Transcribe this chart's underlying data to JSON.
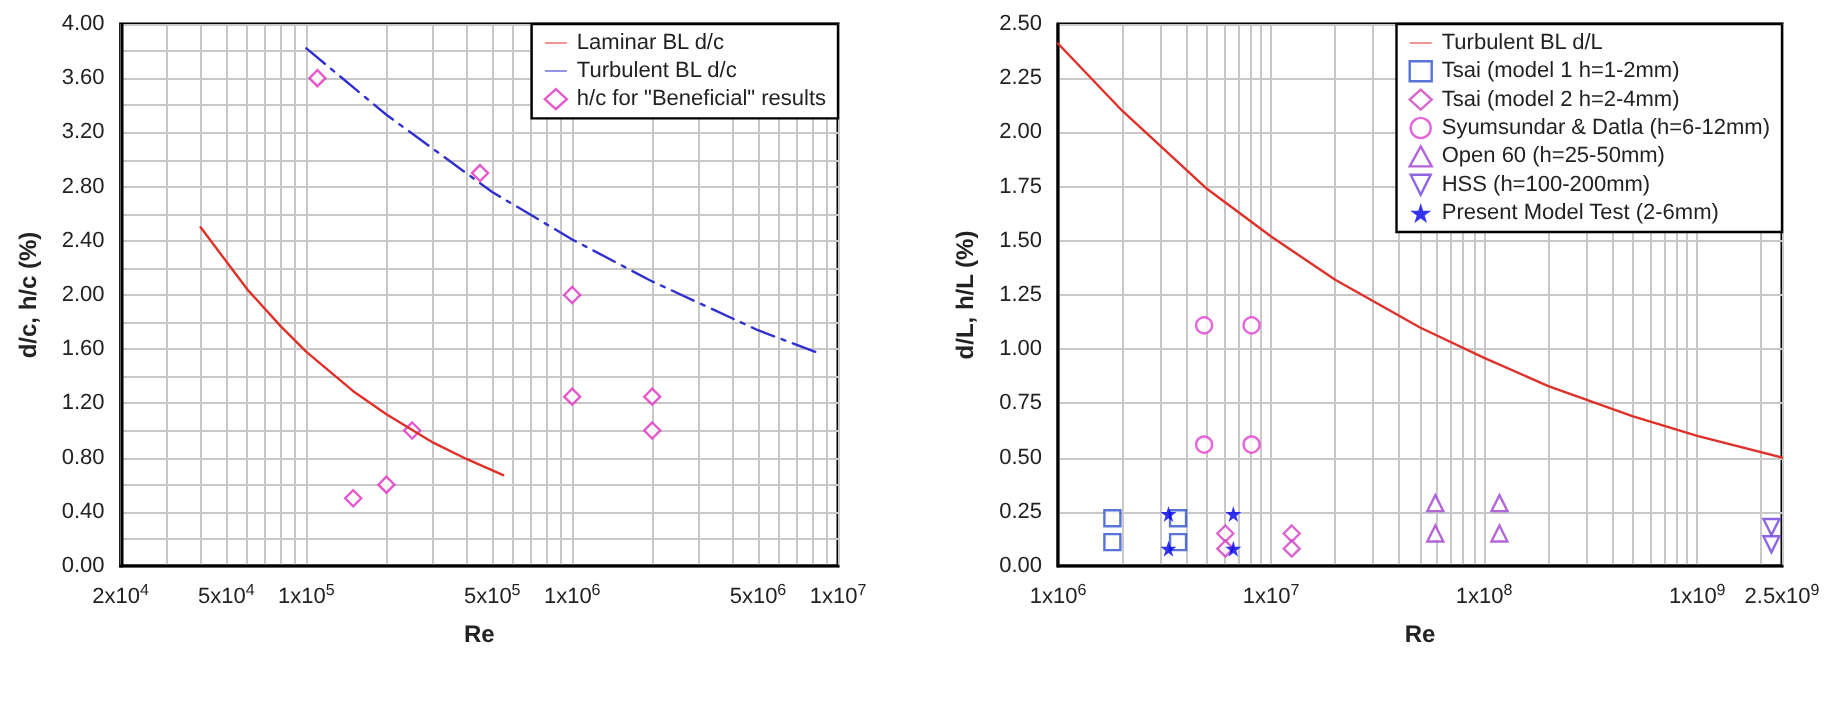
{
  "chart_data": [
    {
      "type": "line",
      "log": "x",
      "xlabel": "Re",
      "ylabel": "d/c, h/c (%)",
      "grid": true,
      "legend": "top right",
      "xlim": [
        20000,
        10000000
      ],
      "ylim": [
        0,
        4
      ],
      "xticks": [
        {
          "value": 20000,
          "label": "2x10$^{4}$"
        },
        {
          "value": 30000,
          "label": null
        },
        {
          "value": 40000,
          "label": null
        },
        {
          "value": 50000,
          "label": "5x10$^{4}$"
        },
        {
          "value": 60000,
          "label": null
        },
        {
          "value": 70000,
          "label": null
        },
        {
          "value": 80000,
          "label": null
        },
        {
          "value": 90000,
          "label": null
        },
        {
          "value": 100000,
          "label": "1x10$^{5}$"
        },
        {
          "value": 200000,
          "label": null
        },
        {
          "value": 300000,
          "label": null
        },
        {
          "value": 400000,
          "label": null
        },
        {
          "value": 500000,
          "label": "5x10$^{5}$"
        },
        {
          "value": 600000,
          "label": null
        },
        {
          "value": 700000,
          "label": null
        },
        {
          "value": 800000,
          "label": null
        },
        {
          "value": 900000,
          "label": null
        },
        {
          "value": 1000000,
          "label": "1x10$^{6}$"
        },
        {
          "value": 2000000,
          "label": null
        },
        {
          "value": 3000000,
          "label": null
        },
        {
          "value": 4000000,
          "label": null
        },
        {
          "value": 5000000,
          "label": "5x10$^{6}$"
        },
        {
          "value": 6000000,
          "label": null
        },
        {
          "value": 7000000,
          "label": null
        },
        {
          "value": 8000000,
          "label": null
        },
        {
          "value": 9000000,
          "label": null
        },
        {
          "value": 10000000,
          "label": "1x10$^{7}$"
        }
      ],
      "yticks": [
        {
          "value": 0,
          "label": "0.00"
        },
        {
          "value": 0.2,
          "label": null
        },
        {
          "value": 0.4,
          "label": "0.40"
        },
        {
          "value": 0.6,
          "label": null
        },
        {
          "value": 0.8,
          "label": "0.80"
        },
        {
          "value": 1.0,
          "label": null
        },
        {
          "value": 1.2,
          "label": "1.20"
        },
        {
          "value": 1.4,
          "label": null
        },
        {
          "value": 1.6,
          "label": "1.60"
        },
        {
          "value": 1.8,
          "label": null
        },
        {
          "value": 2.0,
          "label": "2.00"
        },
        {
          "value": 2.2,
          "label": null
        },
        {
          "value": 2.4,
          "label": "2.40"
        },
        {
          "value": 2.6,
          "label": null
        },
        {
          "value": 2.8,
          "label": "2.80"
        },
        {
          "value": 3.0,
          "label": null
        },
        {
          "value": 3.2,
          "label": "3.20"
        },
        {
          "value": 3.4,
          "label": null
        },
        {
          "value": 3.6,
          "label": "3.60"
        },
        {
          "value": 3.8,
          "label": null
        },
        {
          "value": 4.0,
          "label": "4.00"
        }
      ],
      "series": [
        {
          "name": "Laminar BL d/c",
          "type": "line",
          "color": "#e0302a",
          "line_style": "solid",
          "marker": "none",
          "x": [
            40000,
            60000,
            80000,
            100000,
            150000,
            200000,
            300000,
            400000,
            550000
          ],
          "values": [
            2.5,
            2.04,
            1.77,
            1.58,
            1.29,
            1.12,
            0.91,
            0.79,
            0.67
          ]
        },
        {
          "name": "Turbulent BL d/c",
          "type": "line",
          "color": "#3030d0",
          "line_style": "dashed",
          "marker": "none",
          "x": [
            100000,
            200000,
            500000,
            1000000,
            2000000,
            5000000,
            8500000
          ],
          "values": [
            3.82,
            3.33,
            2.76,
            2.41,
            2.1,
            1.74,
            1.57
          ]
        },
        {
          "name": "h/c for \"Beneficial\" results",
          "type": "scatter",
          "color": "#e030c0",
          "marker": "diamond",
          "x": [
            110000,
            150000,
            200000,
            250000,
            450000,
            1000000,
            1000000,
            2000000,
            2000000
          ],
          "values": [
            3.6,
            0.5,
            0.6,
            1.0,
            2.9,
            2.0,
            1.25,
            1.25,
            1.0
          ]
        }
      ]
    },
    {
      "type": "line",
      "log": "x",
      "xlabel": "Re",
      "ylabel": "d/L, h/L (%)",
      "grid": true,
      "legend": "top right",
      "xlim": [
        1000000,
        2500000000
      ],
      "ylim": [
        0,
        2.5
      ],
      "xticks": [
        {
          "value": 1000000,
          "label": "1x10$^{6}$"
        },
        {
          "value": 2000000,
          "label": null
        },
        {
          "value": 3000000,
          "label": null
        },
        {
          "value": 4000000,
          "label": null
        },
        {
          "value": 5000000,
          "label": null
        },
        {
          "value": 6000000,
          "label": null
        },
        {
          "value": 7000000,
          "label": null
        },
        {
          "value": 8000000,
          "label": null
        },
        {
          "value": 9000000,
          "label": null
        },
        {
          "value": 10000000,
          "label": "1x10$^{7}$"
        },
        {
          "value": 20000000,
          "label": null
        },
        {
          "value": 30000000,
          "label": null
        },
        {
          "value": 40000000,
          "label": null
        },
        {
          "value": 50000000,
          "label": null
        },
        {
          "value": 60000000,
          "label": null
        },
        {
          "value": 70000000,
          "label": null
        },
        {
          "value": 80000000,
          "label": null
        },
        {
          "value": 90000000,
          "label": null
        },
        {
          "value": 100000000,
          "label": "1x10$^{8}$"
        },
        {
          "value": 200000000,
          "label": null
        },
        {
          "value": 300000000,
          "label": null
        },
        {
          "value": 400000000,
          "label": null
        },
        {
          "value": 500000000,
          "label": null
        },
        {
          "value": 600000000,
          "label": null
        },
        {
          "value": 700000000,
          "label": null
        },
        {
          "value": 800000000,
          "label": null
        },
        {
          "value": 900000000,
          "label": null
        },
        {
          "value": 1000000000,
          "label": "1x10$^{9}$"
        },
        {
          "value": 2000000000,
          "label": null
        },
        {
          "value": 2500000000,
          "label": "2.5x10$^{9}$"
        }
      ],
      "yticks": [
        {
          "value": 0,
          "label": "0.00"
        },
        {
          "value": 0.25,
          "label": "0.25"
        },
        {
          "value": 0.5,
          "label": "0.50"
        },
        {
          "value": 0.75,
          "label": "0.75"
        },
        {
          "value": 1.0,
          "label": "1.00"
        },
        {
          "value": 1.25,
          "label": "1.25"
        },
        {
          "value": 1.5,
          "label": "1.50"
        },
        {
          "value": 1.75,
          "label": "1.75"
        },
        {
          "value": 2.0,
          "label": "2.00"
        },
        {
          "value": 2.25,
          "label": "2.25"
        },
        {
          "value": 2.5,
          "label": "2.50"
        }
      ],
      "series": [
        {
          "name": "Turbulent BL d/L",
          "type": "line",
          "color": "#e0302a",
          "line_style": "solid",
          "marker": "none",
          "x": [
            1000000,
            2000000,
            5000000,
            10000000,
            20000000,
            50000000,
            100000000,
            200000000,
            500000000,
            1000000000,
            2500000000
          ],
          "values": [
            2.41,
            2.1,
            1.74,
            1.52,
            1.32,
            1.1,
            0.96,
            0.83,
            0.69,
            0.6,
            0.5
          ]
        },
        {
          "name": "Tsai (model 1 h=1-2mm)",
          "type": "scatter",
          "color": "#3050d0",
          "marker": "square",
          "x": [
            1800000,
            1800000,
            3660000,
            3660000
          ],
          "values": [
            0.22,
            0.11,
            0.22,
            0.11
          ]
        },
        {
          "name": "Tsai (model 2 h=2-4mm)",
          "type": "scatter",
          "color": "#d040c0",
          "marker": "diamond",
          "x": [
            6100000,
            6100000,
            12500000,
            12500000
          ],
          "values": [
            0.15,
            0.08,
            0.15,
            0.08
          ]
        },
        {
          "name": "Syumsundar & Datla (h=6-12mm)",
          "type": "scatter",
          "color": "#e040d0",
          "marker": "circle",
          "x": [
            4850000,
            4850000,
            8100000,
            8100000
          ],
          "values": [
            1.11,
            0.56,
            1.11,
            0.56
          ]
        },
        {
          "name": "Open 60 (h=25-50mm)",
          "type": "scatter",
          "color": "#a040d0",
          "marker": "triangle",
          "x": [
            59000000,
            59000000,
            118000000,
            118000000
          ],
          "values": [
            0.29,
            0.15,
            0.29,
            0.15
          ]
        },
        {
          "name": "HSS (h=100-200mm)",
          "type": "scatter",
          "color": "#7040e0",
          "marker": "triangle_down",
          "x": [
            2230000000,
            2230000000
          ],
          "values": [
            0.18,
            0.1
          ]
        },
        {
          "name": "Present Model Test (2-6mm)",
          "type": "scatter",
          "color": "#0000ee",
          "marker": "star",
          "x": [
            3300000,
            3300000,
            6650000,
            6650000
          ],
          "values": [
            0.24,
            0.08,
            0.24,
            0.08
          ]
        }
      ]
    }
  ]
}
